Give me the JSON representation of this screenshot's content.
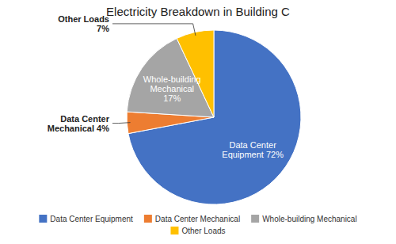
{
  "chart_data": {
    "type": "pie",
    "title": "Electricity Breakdown in Building C",
    "categories": [
      "Data Center Equipment",
      "Data Center Mechanical",
      "Whole-building Mechanical",
      "Other Loads"
    ],
    "values": [
      72,
      4,
      17,
      7
    ],
    "value_labels": [
      "Data Center\nEquipment 72%",
      "Data Center\nMechanical 4%",
      "Whole-building\nMechanical\n17%",
      "Other Loads\n7%"
    ],
    "colors": [
      "#4472C4",
      "#ED7D31",
      "#A5A5A5",
      "#FFC000"
    ],
    "data_labels": true,
    "legend": "bottom"
  }
}
